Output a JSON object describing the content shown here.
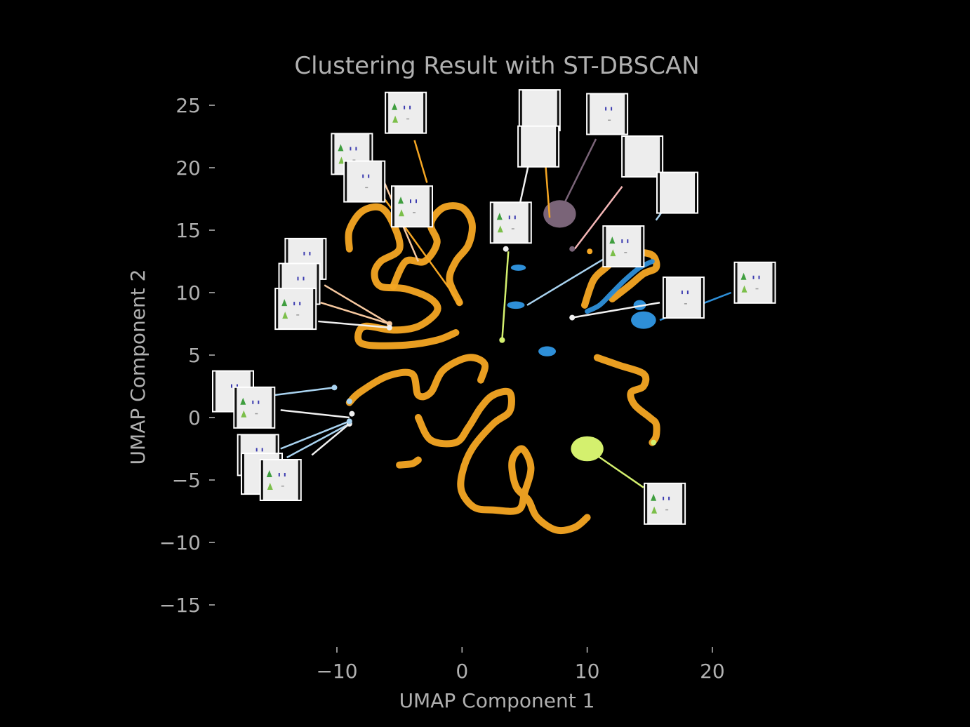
{
  "chart_data": {
    "type": "scatter",
    "title": "Clustering Result with ST-DBSCAN",
    "xlabel": "UMAP Component 1",
    "ylabel": "UMAP Component 2",
    "xlim": [
      -20,
      25
    ],
    "ylim": [
      -18,
      27
    ],
    "x_ticks": [
      -10,
      0,
      10,
      20
    ],
    "x_tick_labels": [
      "−10",
      "0",
      "10",
      "20"
    ],
    "y_ticks": [
      25,
      20,
      15,
      10,
      5,
      0,
      -5,
      -10,
      -15
    ],
    "y_tick_labels": [
      "25",
      "20",
      "15",
      "10",
      "5",
      "0",
      "−5",
      "−10",
      "−15"
    ],
    "grid": false,
    "legend": "none",
    "background": "#000000",
    "text_color": "#b0b0b0",
    "cluster_colors": {
      "orange": "#f5a623",
      "blue": "#2e8fd8",
      "mauve": "#7a6478",
      "lime": "#d4f06e",
      "lightblue": "#a9d3f0",
      "peach": "#f7c9a0",
      "white": "#f0f0f0",
      "pink": "#f4b6b6"
    },
    "curves": [
      {
        "color": "orange",
        "points": [
          [
            -9.0,
            13.5
          ],
          [
            -9.0,
            15.0
          ],
          [
            -8.0,
            16.5
          ],
          [
            -6.5,
            16.8
          ],
          [
            -5.5,
            15.5
          ],
          [
            -5.0,
            13.5
          ],
          [
            -6.5,
            12.5
          ],
          [
            -7.0,
            11.5
          ],
          [
            -6.5,
            10.5
          ],
          [
            -4.5,
            10.3
          ],
          [
            -2.5,
            9.5
          ],
          [
            -2.0,
            8.5
          ],
          [
            -3.5,
            7.3
          ],
          [
            -5.5,
            7.0
          ],
          [
            -7.8,
            7.3
          ],
          [
            -8.3,
            6.3
          ],
          [
            -7.5,
            5.8
          ],
          [
            -4.5,
            5.8
          ],
          [
            -2.0,
            6.2
          ],
          [
            -0.5,
            6.8
          ]
        ]
      },
      {
        "color": "orange",
        "points": [
          [
            -5.5,
            10.5
          ],
          [
            -4.5,
            12.5
          ],
          [
            -3.0,
            12.5
          ],
          [
            -2.0,
            14.0
          ],
          [
            -2.5,
            15.5
          ],
          [
            -1.5,
            16.8
          ],
          [
            0.0,
            16.8
          ],
          [
            0.8,
            15.5
          ],
          [
            0.5,
            13.8
          ],
          [
            -0.5,
            12.5
          ],
          [
            -1.0,
            11.0
          ],
          [
            -0.2,
            9.2
          ]
        ]
      },
      {
        "color": "orange",
        "points": [
          [
            -9.0,
            1.2
          ],
          [
            -8.2,
            2.0
          ],
          [
            -6.0,
            3.3
          ],
          [
            -4.0,
            3.5
          ],
          [
            -3.5,
            1.8
          ],
          [
            -2.5,
            2.0
          ],
          [
            -1.5,
            3.8
          ],
          [
            0.5,
            4.8
          ],
          [
            1.8,
            4.3
          ],
          [
            1.5,
            3.0
          ]
        ]
      },
      {
        "color": "orange",
        "points": [
          [
            -3.5,
            0.0
          ],
          [
            -2.5,
            -1.8
          ],
          [
            -0.5,
            -2.0
          ],
          [
            0.5,
            -0.8
          ],
          [
            1.5,
            0.8
          ],
          [
            2.5,
            1.8
          ],
          [
            3.8,
            2.0
          ],
          [
            3.8,
            0.5
          ],
          [
            2.5,
            -0.5
          ],
          [
            0.8,
            -2.5
          ],
          [
            0.0,
            -4.5
          ],
          [
            0.0,
            -6.0
          ],
          [
            1.0,
            -7.2
          ],
          [
            2.5,
            -7.4
          ],
          [
            4.5,
            -7.4
          ],
          [
            5.0,
            -6.0
          ],
          [
            5.5,
            -4.0
          ],
          [
            4.8,
            -2.5
          ],
          [
            4.0,
            -3.5
          ],
          [
            4.3,
            -5.5
          ],
          [
            5.3,
            -6.6
          ],
          [
            6.0,
            -8.0
          ],
          [
            7.5,
            -9.0
          ],
          [
            9.0,
            -8.8
          ],
          [
            10.0,
            -8.0
          ]
        ]
      },
      {
        "color": "orange",
        "points": [
          [
            -5.0,
            -3.8
          ],
          [
            -4.0,
            -3.7
          ],
          [
            -3.5,
            -3.4
          ]
        ]
      },
      {
        "color": "orange",
        "points": [
          [
            10.8,
            4.8
          ],
          [
            12.5,
            4.2
          ],
          [
            14.5,
            3.5
          ],
          [
            14.5,
            2.5
          ],
          [
            13.5,
            2.0
          ],
          [
            13.8,
            1.0
          ],
          [
            15.0,
            0.0
          ],
          [
            15.5,
            -0.5
          ],
          [
            15.5,
            -1.5
          ],
          [
            15.2,
            -2.0
          ]
        ]
      },
      {
        "color": "orange",
        "points": [
          [
            9.8,
            9.0
          ],
          [
            10.5,
            11.0
          ],
          [
            11.5,
            12.0
          ],
          [
            12.5,
            12.8
          ],
          [
            13.8,
            13.2
          ],
          [
            15.2,
            13.0
          ],
          [
            15.5,
            12.0
          ],
          [
            14.5,
            11.5
          ],
          [
            13.3,
            10.5
          ],
          [
            12.0,
            9.5
          ]
        ]
      },
      {
        "color": "blue",
        "points": [
          [
            10.0,
            8.5
          ],
          [
            11.0,
            9.0
          ],
          [
            12.0,
            10.0
          ],
          [
            13.0,
            11.0
          ],
          [
            14.2,
            12.0
          ],
          [
            15.2,
            12.5
          ]
        ]
      }
    ],
    "blobs": [
      {
        "color": "mauve",
        "x": 7.8,
        "y": 16.3,
        "rx": 1.3,
        "ry": 1.1
      },
      {
        "color": "blue",
        "x": 14.5,
        "y": 7.8,
        "rx": 1.0,
        "ry": 0.7
      },
      {
        "color": "blue",
        "x": 14.2,
        "y": 9.0,
        "rx": 0.5,
        "ry": 0.4
      },
      {
        "color": "blue",
        "x": 6.8,
        "y": 5.3,
        "rx": 0.7,
        "ry": 0.4
      },
      {
        "color": "blue",
        "x": 4.3,
        "y": 9.0,
        "rx": 0.7,
        "ry": 0.3
      },
      {
        "color": "blue",
        "x": 4.5,
        "y": 12.0,
        "rx": 0.6,
        "ry": 0.25
      },
      {
        "color": "lime",
        "x": 10.0,
        "y": -2.5,
        "rx": 1.3,
        "ry": 1.0
      }
    ],
    "points": [
      {
        "color": "orange",
        "x": -0.2,
        "y": 9.2
      },
      {
        "color": "orange",
        "x": 10.2,
        "y": 13.3
      },
      {
        "color": "lightblue",
        "x": -10.2,
        "y": 2.4
      },
      {
        "color": "lightblue",
        "x": -9.0,
        "y": 1.3
      },
      {
        "color": "white",
        "x": -8.8,
        "y": 0.3
      },
      {
        "color": "white",
        "x": -9.0,
        "y": -0.5
      },
      {
        "color": "lightblue",
        "x": -9.0,
        "y": -0.3
      },
      {
        "color": "white",
        "x": 3.2,
        "y": 6.2
      },
      {
        "color": "lime",
        "x": 3.2,
        "y": 6.2
      },
      {
        "color": "white",
        "x": 3.5,
        "y": 13.5
      },
      {
        "color": "white",
        "x": 8.8,
        "y": 8.0
      },
      {
        "color": "mauve",
        "x": 8.8,
        "y": 13.5
      },
      {
        "color": "peach",
        "x": -5.8,
        "y": 7.5
      },
      {
        "color": "white",
        "x": -5.8,
        "y": 7.2
      },
      {
        "color": "lime",
        "x": 15.3,
        "y": -2.0
      }
    ],
    "annotations": [
      {
        "color": "lightblue",
        "from": [
          -10.2,
          2.4
        ],
        "to": [
          -15.0,
          1.8
        ]
      },
      {
        "color": "white",
        "from": [
          -9.0,
          0.0
        ],
        "to": [
          -14.5,
          0.6
        ]
      },
      {
        "color": "lightblue",
        "from": [
          -9.0,
          -0.3
        ],
        "to": [
          -14.5,
          -2.5
        ]
      },
      {
        "color": "lightblue",
        "from": [
          -9.0,
          -0.5
        ],
        "to": [
          -14.0,
          -3.2
        ]
      },
      {
        "color": "white",
        "from": [
          -9.0,
          -0.5
        ],
        "to": [
          -12.0,
          -3.0
        ]
      },
      {
        "color": "peach",
        "from": [
          -5.8,
          7.5
        ],
        "to": [
          -11.0,
          10.6
        ]
      },
      {
        "color": "peach",
        "from": [
          -5.8,
          7.5
        ],
        "to": [
          -11.3,
          9.2
        ]
      },
      {
        "color": "white",
        "from": [
          -5.8,
          7.2
        ],
        "to": [
          -11.5,
          7.7
        ]
      },
      {
        "color": "orange",
        "from": [
          -0.2,
          9.2
        ],
        "to": [
          -8.0,
          20.0
        ]
      },
      {
        "color": "orange",
        "from": [
          -2.8,
          18.8
        ],
        "to": [
          -3.8,
          22.2
        ]
      },
      {
        "color": "peach",
        "from": [
          -3.5,
          12.5
        ],
        "to": [
          -6.5,
          19.5
        ]
      },
      {
        "color": "lime",
        "from": [
          3.2,
          6.2
        ],
        "to": [
          3.7,
          13.3
        ]
      },
      {
        "color": "white",
        "from": [
          4.6,
          17.0
        ],
        "to": [
          5.3,
          20.2
        ]
      },
      {
        "color": "orange",
        "from": [
          7.0,
          16.0
        ],
        "to": [
          6.5,
          22.5
        ]
      },
      {
        "color": "mauve",
        "from": [
          8.0,
          16.8
        ],
        "to": [
          10.7,
          22.3
        ]
      },
      {
        "color": "pink",
        "from": [
          9.0,
          13.5
        ],
        "to": [
          12.8,
          18.5
        ]
      },
      {
        "color": "lightblue",
        "from": [
          15.5,
          15.8
        ],
        "to": [
          16.0,
          16.5
        ]
      },
      {
        "color": "lightblue",
        "from": [
          5.2,
          9.0
        ],
        "to": [
          11.5,
          12.8
        ]
      },
      {
        "color": "white",
        "from": [
          8.8,
          8.0
        ],
        "to": [
          15.8,
          9.2
        ]
      },
      {
        "color": "blue",
        "from": [
          15.8,
          7.8
        ],
        "to": [
          21.5,
          10.0
        ]
      },
      {
        "color": "lime",
        "from": [
          10.0,
          -2.5
        ],
        "to": [
          14.5,
          -5.6
        ]
      }
    ],
    "thumbnails": [
      {
        "x": -4.5,
        "y": 24.4,
        "icon": "trees-cars-icon"
      },
      {
        "x": -8.8,
        "y": 21.1,
        "icon": "trees-cars-icon"
      },
      {
        "x": -7.8,
        "y": 18.9,
        "icon": "cars-icon"
      },
      {
        "x": -4.0,
        "y": 16.9,
        "icon": "trees-cars-icon"
      },
      {
        "x": -12.5,
        "y": 12.7,
        "icon": "cars-icon"
      },
      {
        "x": -13.0,
        "y": 10.7,
        "icon": "cars-icon"
      },
      {
        "x": -13.3,
        "y": 8.7,
        "icon": "trees-cars-icon"
      },
      {
        "x": 3.9,
        "y": 15.6,
        "icon": "trees-cars-icon"
      },
      {
        "x": 6.2,
        "y": 24.6,
        "icon": "blank-icon"
      },
      {
        "x": 6.1,
        "y": 21.7,
        "icon": "blank-icon"
      },
      {
        "x": 11.6,
        "y": 24.3,
        "icon": "cars-icon"
      },
      {
        "x": 14.4,
        "y": 20.9,
        "icon": "blank-icon"
      },
      {
        "x": 17.2,
        "y": 18.0,
        "icon": "blank-icon"
      },
      {
        "x": 12.9,
        "y": 13.7,
        "icon": "trees-cars-icon"
      },
      {
        "x": 17.7,
        "y": 9.6,
        "icon": "cars-icon"
      },
      {
        "x": 23.4,
        "y": 10.8,
        "icon": "trees-cars-icon"
      },
      {
        "x": -18.3,
        "y": 2.1,
        "icon": "cars-icon"
      },
      {
        "x": -16.6,
        "y": 0.8,
        "icon": "trees-cars-icon"
      },
      {
        "x": -16.3,
        "y": -3.0,
        "icon": "cars-icon"
      },
      {
        "x": -16.0,
        "y": -4.5,
        "icon": "cars-icon"
      },
      {
        "x": -14.5,
        "y": -5.0,
        "icon": "trees-cars-icon"
      },
      {
        "x": 16.2,
        "y": -6.9,
        "icon": "trees-cars-icon"
      }
    ]
  }
}
